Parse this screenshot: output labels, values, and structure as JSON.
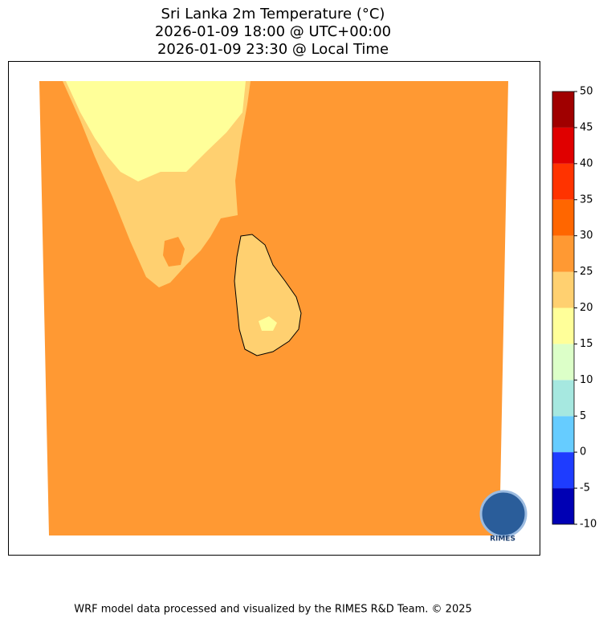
{
  "title": [
    "Sri Lanka 2m Temperature (°C)",
    "2026-01-09 18:00 @ UTC+00:00",
    "2026-01-09 23:30 @ Local Time"
  ],
  "colorbar": {
    "bounds": [
      -10,
      -5,
      0,
      5,
      10,
      15,
      20,
      25,
      30,
      35,
      40,
      45,
      50
    ],
    "colors": [
      "#0000b4",
      "#1e3cff",
      "#66ccff",
      "#a6e8e0",
      "#dcffc8",
      "#ffff99",
      "#ffd070",
      "#ff9933",
      "#ff6600",
      "#ff3300",
      "#e00000",
      "#a00000"
    ]
  },
  "logo": "RIMES",
  "footer": "WRF model data processed and visualized by the RIMES R&D Team. © 2025"
}
